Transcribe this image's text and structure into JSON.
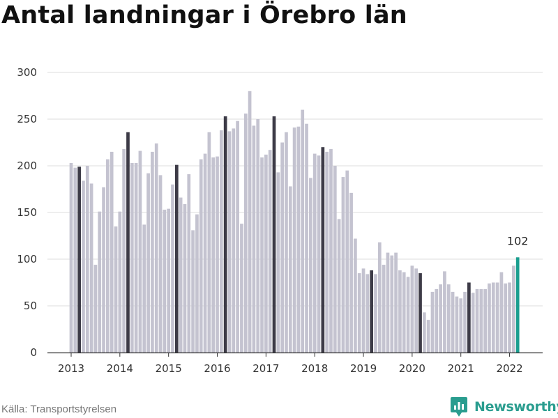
{
  "chart_data": {
    "type": "bar",
    "title": "Antal landningar i Örebro län",
    "xlabel": "",
    "ylabel": "",
    "ylim": [
      0,
      300
    ],
    "yticks": [
      0,
      50,
      100,
      150,
      200,
      250,
      300
    ],
    "xtick_labels": [
      "2013",
      "2014",
      "2015",
      "2016",
      "2017",
      "2018",
      "2019",
      "2020",
      "2021",
      "2022"
    ],
    "frequency": "monthly",
    "start": "2013-01",
    "end": "2022-03",
    "highlight_note": "Mars varje år markerad i mörkare färg; senaste värdet markerat i grönt",
    "annotation": "102",
    "colors": {
      "bar": "#c4c3d0",
      "march": "#3d3b47",
      "latest": "#1a9e8f",
      "grid": "#dddddd"
    },
    "x": [
      "2013-01",
      "2013-02",
      "2013-03",
      "2013-04",
      "2013-05",
      "2013-06",
      "2013-07",
      "2013-08",
      "2013-09",
      "2013-10",
      "2013-11",
      "2013-12",
      "2014-01",
      "2014-02",
      "2014-03",
      "2014-04",
      "2014-05",
      "2014-06",
      "2014-07",
      "2014-08",
      "2014-09",
      "2014-10",
      "2014-11",
      "2014-12",
      "2015-01",
      "2015-02",
      "2015-03",
      "2015-04",
      "2015-05",
      "2015-06",
      "2015-07",
      "2015-08",
      "2015-09",
      "2015-10",
      "2015-11",
      "2015-12",
      "2016-01",
      "2016-02",
      "2016-03",
      "2016-04",
      "2016-05",
      "2016-06",
      "2016-07",
      "2016-08",
      "2016-09",
      "2016-10",
      "2016-11",
      "2016-12",
      "2017-01",
      "2017-02",
      "2017-03",
      "2017-04",
      "2017-05",
      "2017-06",
      "2017-07",
      "2017-08",
      "2017-09",
      "2017-10",
      "2017-11",
      "2017-12",
      "2018-01",
      "2018-02",
      "2018-03",
      "2018-04",
      "2018-05",
      "2018-06",
      "2018-07",
      "2018-08",
      "2018-09",
      "2018-10",
      "2018-11",
      "2018-12",
      "2019-01",
      "2019-02",
      "2019-03",
      "2019-04",
      "2019-05",
      "2019-06",
      "2019-07",
      "2019-08",
      "2019-09",
      "2019-10",
      "2019-11",
      "2019-12",
      "2020-01",
      "2020-02",
      "2020-03",
      "2020-04",
      "2020-05",
      "2020-06",
      "2020-07",
      "2020-08",
      "2020-09",
      "2020-10",
      "2020-11",
      "2020-12",
      "2021-01",
      "2021-02",
      "2021-03",
      "2021-04",
      "2021-05",
      "2021-06",
      "2021-07",
      "2021-08",
      "2021-09",
      "2021-10",
      "2021-11",
      "2021-12",
      "2022-01",
      "2022-02",
      "2022-03"
    ],
    "values": [
      203,
      198,
      199,
      184,
      200,
      181,
      94,
      151,
      177,
      207,
      215,
      135,
      151,
      218,
      236,
      203,
      203,
      216,
      137,
      192,
      215,
      224,
      190,
      153,
      154,
      180,
      201,
      166,
      159,
      191,
      131,
      148,
      207,
      213,
      236,
      209,
      210,
      238,
      253,
      237,
      240,
      248,
      138,
      256,
      280,
      243,
      250,
      209,
      212,
      217,
      253,
      193,
      225,
      236,
      178,
      241,
      242,
      260,
      245,
      187,
      213,
      211,
      220,
      215,
      218,
      200,
      143,
      188,
      195,
      171,
      122,
      85,
      90,
      84,
      88,
      84,
      118,
      94,
      107,
      104,
      107,
      88,
      86,
      81,
      93,
      90,
      85,
      43,
      35,
      65,
      68,
      73,
      87,
      73,
      65,
      60,
      58,
      65,
      75,
      64,
      68,
      68,
      68,
      74,
      75,
      75,
      86,
      74,
      75,
      93,
      102
    ]
  },
  "source": "Källa: Transportstyrelsen",
  "brand": {
    "name": "Newsworthy",
    "icon": "newsworthy-logo-icon"
  }
}
